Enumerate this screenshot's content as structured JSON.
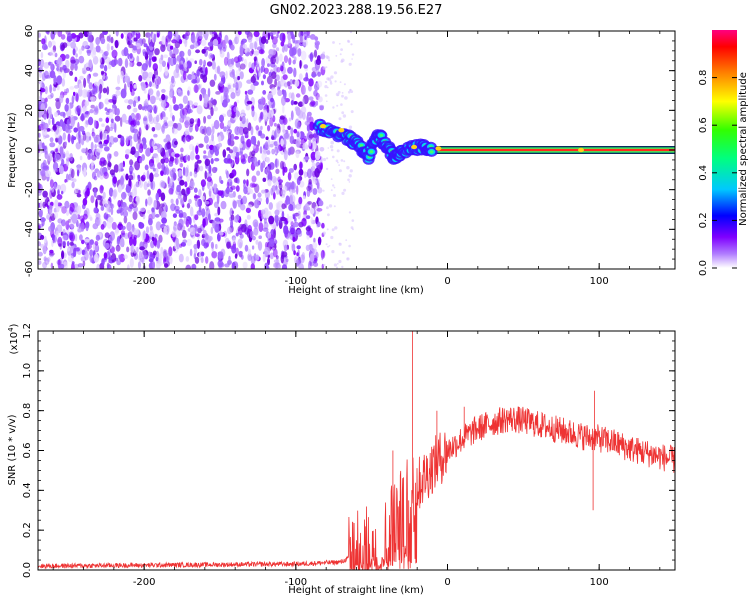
{
  "title": "GN02.2023.288.19.56.E27",
  "chart_data": [
    {
      "type": "heatmap",
      "name": "spectrogram",
      "xlabel": "Height of straight line (km)",
      "ylabel": "Frequency (Hz)",
      "xlim": [
        -270,
        150
      ],
      "ylim": [
        -60,
        60
      ],
      "x_ticks": [
        -200,
        -100,
        0,
        100
      ],
      "y_ticks": [
        -60,
        -40,
        -20,
        0,
        20,
        40,
        60
      ],
      "signal_track": [
        {
          "x": -85,
          "y": 12
        },
        {
          "x": -75,
          "y": 9
        },
        {
          "x": -65,
          "y": 6
        },
        {
          "x": -58,
          "y": 2
        },
        {
          "x": -52,
          "y": -3
        },
        {
          "x": -46,
          "y": 8
        },
        {
          "x": -40,
          "y": 2
        },
        {
          "x": -35,
          "y": -4
        },
        {
          "x": -30,
          "y": -1
        },
        {
          "x": -22,
          "y": 1
        },
        {
          "x": -15,
          "y": 2
        },
        {
          "x": -10,
          "y": 0
        },
        {
          "x": 0,
          "y": 0
        },
        {
          "x": 50,
          "y": 0
        },
        {
          "x": 100,
          "y": 0
        },
        {
          "x": 150,
          "y": 0
        }
      ],
      "noise_edge_x": -82,
      "colorbar": {
        "label": "Normalized spectral amplitude",
        "ticks": [
          0.0,
          0.2,
          0.4,
          0.6,
          0.8
        ],
        "range": [
          0,
          1
        ],
        "colors": [
          "#ffffff",
          "#7f00ff",
          "#0000ff",
          "#00c8ff",
          "#00ff80",
          "#32ff00",
          "#ffff00",
          "#ff8000",
          "#ff0000",
          "#ff0080"
        ]
      }
    },
    {
      "type": "line",
      "name": "snr",
      "xlabel": "Height of straight line (km)",
      "ylabel": "SNR (10 * v/v)",
      "y_multiplier": "(x10",
      "y_multiplier_exp": "4",
      "y_multiplier_close": ")",
      "xlim": [
        -270,
        150
      ],
      "ylim": [
        0,
        1.2
      ],
      "x_ticks": [
        -200,
        -100,
        0,
        100
      ],
      "y_ticks": [
        "0.0",
        "0.2",
        "0.4",
        "0.6",
        "0.8",
        "1.0",
        "1.2"
      ],
      "color": "#ee3333",
      "envelope": [
        {
          "x": -270,
          "y": 0.02
        },
        {
          "x": -100,
          "y": 0.03
        },
        {
          "x": -70,
          "y": 0.04
        },
        {
          "x": -60,
          "y": 0.08
        },
        {
          "x": -50,
          "y": 0.12
        },
        {
          "x": -40,
          "y": 0.2
        },
        {
          "x": -30,
          "y": 0.3
        },
        {
          "x": -20,
          "y": 0.42
        },
        {
          "x": -10,
          "y": 0.52
        },
        {
          "x": 0,
          "y": 0.6
        },
        {
          "x": 10,
          "y": 0.66
        },
        {
          "x": 20,
          "y": 0.71
        },
        {
          "x": 30,
          "y": 0.74
        },
        {
          "x": 40,
          "y": 0.76
        },
        {
          "x": 50,
          "y": 0.75
        },
        {
          "x": 60,
          "y": 0.73
        },
        {
          "x": 70,
          "y": 0.71
        },
        {
          "x": 80,
          "y": 0.69
        },
        {
          "x": 90,
          "y": 0.67
        },
        {
          "x": 100,
          "y": 0.66
        },
        {
          "x": 110,
          "y": 0.64
        },
        {
          "x": 120,
          "y": 0.61
        },
        {
          "x": 130,
          "y": 0.59
        },
        {
          "x": 140,
          "y": 0.57
        },
        {
          "x": 150,
          "y": 0.55
        }
      ],
      "spikes": [
        {
          "x": -23,
          "y": 1.2
        },
        {
          "x": -36,
          "y": 0.6
        },
        {
          "x": -7,
          "y": 0.8
        },
        {
          "x": 11,
          "y": 0.82
        },
        {
          "x": 97,
          "y": 0.9
        },
        {
          "x": 96,
          "y": 0.3
        }
      ]
    }
  ]
}
